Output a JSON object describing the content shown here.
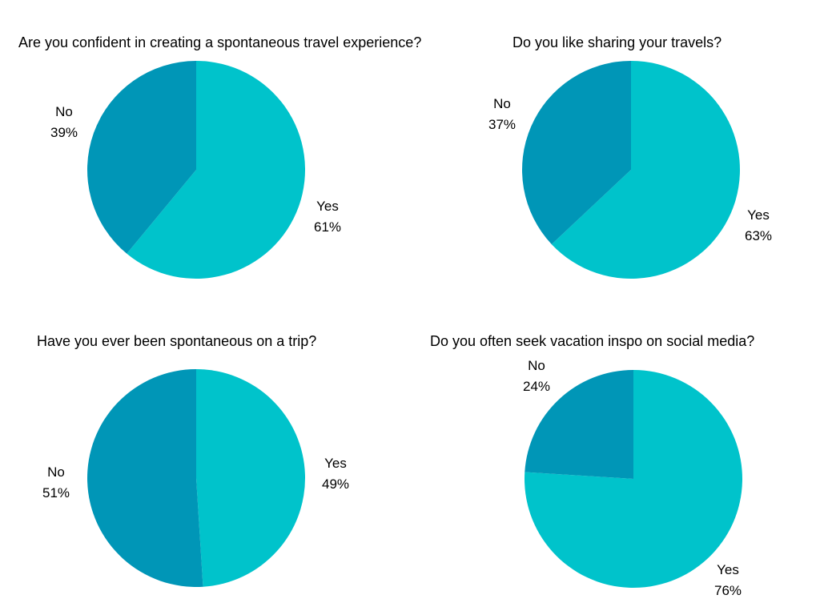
{
  "colors": {
    "yes": "#00C3CB",
    "no": "#0096B7"
  },
  "chart_data": [
    {
      "type": "pie",
      "title": "Are you confident in creating a spontaneous travel experience?",
      "slices": [
        {
          "label": "Yes",
          "value": 61,
          "value_label": "61%",
          "color": "#00C3CB"
        },
        {
          "label": "No",
          "value": 39,
          "value_label": "39%",
          "color": "#0096B7"
        }
      ]
    },
    {
      "type": "pie",
      "title": "Do you like sharing your travels?",
      "slices": [
        {
          "label": "Yes",
          "value": 63,
          "value_label": "63%",
          "color": "#00C3CB"
        },
        {
          "label": "No",
          "value": 37,
          "value_label": "37%",
          "color": "#0096B7"
        }
      ]
    },
    {
      "type": "pie",
      "title": "Have you ever been spontaneous on a trip?",
      "slices": [
        {
          "label": "Yes",
          "value": 49,
          "value_label": "49%",
          "color": "#00C3CB"
        },
        {
          "label": "No",
          "value": 51,
          "value_label": "51%",
          "color": "#0096B7"
        }
      ]
    },
    {
      "type": "pie",
      "title": "Do you often seek vacation inspo on social media?",
      "slices": [
        {
          "label": "Yes",
          "value": 76,
          "value_label": "76%",
          "color": "#00C3CB"
        },
        {
          "label": "No",
          "value": 24,
          "value_label": "24%",
          "color": "#0096B7"
        }
      ]
    }
  ]
}
